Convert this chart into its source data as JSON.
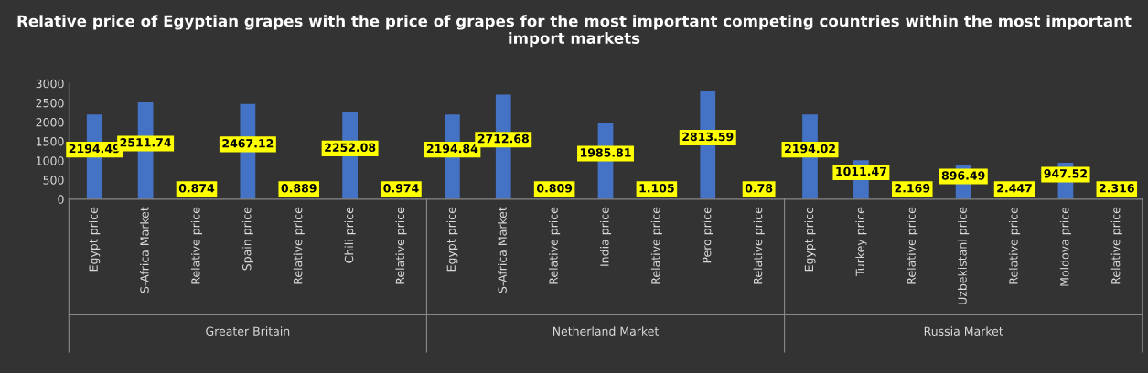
{
  "chart_data": {
    "type": "bar",
    "title": "Relative price of Egyptian grapes with the price of grapes for the most important competing countries within the most important import markets",
    "categories": [
      "Egypt price",
      "S-Africa Market",
      "Relative price",
      "Spain price",
      "Relative price",
      "Chili price",
      "Relative price",
      "Egypt price",
      "S-Africa Market",
      "Relative price",
      "India price",
      "Relative price",
      "Pero price",
      "Relative price",
      "Egypt price",
      "Turkey price",
      "Relative price",
      "Uzbekistani price",
      "Relative price",
      "Moldova price",
      "Relative price"
    ],
    "values": [
      2194.49,
      2511.74,
      0.874,
      2467.12,
      0.889,
      2252.08,
      0.974,
      2194.84,
      2712.68,
      0.809,
      1985.81,
      1.105,
      2813.59,
      0.78,
      2194.02,
      1011.47,
      2.169,
      896.49,
      2.447,
      947.52,
      2.316
    ],
    "color": "#4472c4",
    "ylim": [
      0,
      3000
    ],
    "yticks": [
      0,
      500,
      1000,
      1500,
      2000,
      2500,
      3000
    ],
    "data_labels": true,
    "grid": false,
    "legend": false,
    "annotations": [
      "Greater Britain",
      "Netherland Market",
      "Russia Market"
    ]
  }
}
